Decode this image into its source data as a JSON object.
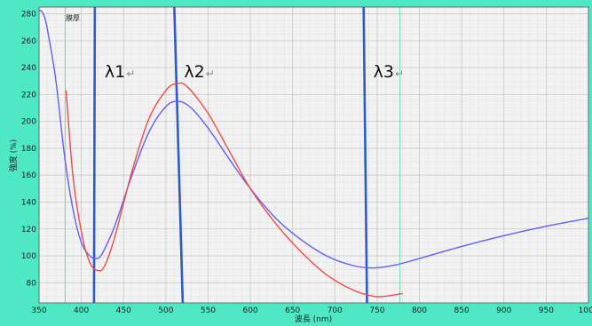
{
  "chart_data": {
    "type": "line",
    "xlabel": "波長 (nm)",
    "ylabel": "強度 (%)",
    "xlim": [
      350,
      1000
    ],
    "ylim": [
      65,
      285
    ],
    "x_ticks": [
      350,
      400,
      450,
      500,
      550,
      600,
      650,
      700,
      750,
      800,
      850,
      900,
      950,
      1000
    ],
    "y_ticks": [
      80,
      100,
      120,
      140,
      160,
      180,
      200,
      220,
      240,
      260,
      280
    ],
    "grid": true,
    "plot_background": "#f2f2f2",
    "frame_background": "#4ee8c4",
    "annotation": "膜厚",
    "series": [
      {
        "color": "#6060f0",
        "x": [
          350,
          355,
          360,
          370,
          380,
          390,
          400,
          410,
          418,
          425,
          440,
          460,
          480,
          500,
          515,
          530,
          550,
          575,
          600,
          630,
          660,
          690,
          720,
          745,
          770,
          800,
          850,
          900,
          950,
          1000
        ],
        "y": [
          283,
          280,
          268,
          230,
          175,
          135,
          110,
          100,
          98,
          102,
          123,
          160,
          192,
          211,
          215,
          210,
          195,
          172,
          150,
          128,
          112,
          100,
          93,
          91,
          93,
          98,
          107,
          115,
          122,
          128
        ]
      },
      {
        "color": "#ee4a4a",
        "x": [
          382,
          390,
          400,
          410,
          420,
          428,
          440,
          460,
          480,
          500,
          512,
          525,
          550,
          575,
          600,
          630,
          660,
          690,
          720,
          745,
          760,
          780
        ],
        "y": [
          223,
          160,
          118,
          95,
          89,
          93,
          115,
          163,
          202,
          223,
          228,
          226,
          206,
          178,
          150,
          124,
          103,
          86,
          75,
          70,
          70,
          72
        ]
      }
    ],
    "vertical_lines": [
      {
        "name": "λ1",
        "x_top": 416,
        "x_bottom": 415,
        "color": "#2c5cc4"
      },
      {
        "name": "λ2",
        "x_top": 510,
        "x_bottom": 520,
        "color": "#2c5cc4"
      },
      {
        "name": "λ3",
        "x_top": 734,
        "x_bottom": 738,
        "color": "#2c5cc4"
      },
      {
        "name": "",
        "x_top": 381,
        "x_bottom": 381,
        "color": "#66e0b4"
      },
      {
        "name": "",
        "x_top": 777,
        "x_bottom": 777,
        "color": "#66e0b4"
      }
    ],
    "return_mark": "↵"
  }
}
